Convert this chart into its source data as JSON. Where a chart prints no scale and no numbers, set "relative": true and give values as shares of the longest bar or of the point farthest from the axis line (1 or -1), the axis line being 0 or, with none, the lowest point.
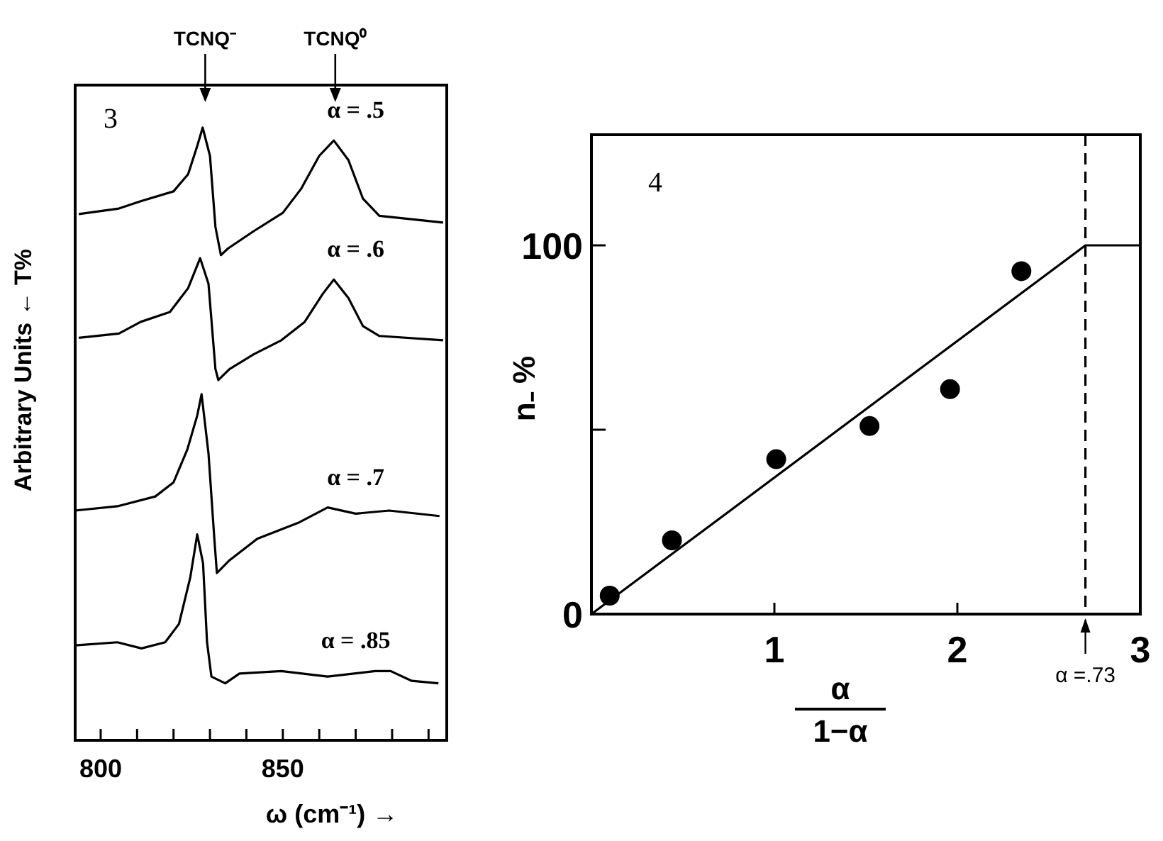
{
  "chart_data": [
    {
      "type": "line",
      "relative": true,
      "xlabel": "ω (cm⁻¹) →",
      "ylabel": "Arbitrary Units  ← T%",
      "xlim": [
        793,
        895
      ],
      "xticks": [
        800,
        {
          "value": 810,
          "label": null
        },
        {
          "value": 820,
          "label": null
        },
        {
          "value": 830,
          "label": null
        },
        {
          "value": 840,
          "label": null
        },
        850,
        {
          "value": 860,
          "label": null
        },
        {
          "value": 870,
          "label": null
        },
        {
          "value": 880,
          "label": null
        },
        {
          "value": 890,
          "label": null
        }
      ],
      "tick_labels": "x",
      "annotations": [
        "3",
        "TCNQ⁻",
        "TCNQ⁰"
      ],
      "series": [
        {
          "name": "α = .5",
          "color": "#000000",
          "x": [
            794,
            805,
            811,
            820,
            824,
            826.5,
            828,
            830,
            831.5,
            833,
            835,
            842,
            850,
            855,
            860,
            864,
            868,
            872,
            876.5,
            883,
            894
          ],
          "values": [
            0.859,
            0.868,
            0.88,
            0.896,
            0.924,
            0.97,
            1,
            0.954,
            0.838,
            0.792,
            0.803,
            0.831,
            0.861,
            0.9,
            0.954,
            0.979,
            0.947,
            0.884,
            0.856,
            0.852,
            0.845
          ]
        },
        {
          "name": "α = .6",
          "color": "#000000",
          "x": [
            794,
            805,
            811,
            819,
            824,
            827.3,
            829.6,
            831.5,
            832.3,
            835.4,
            842,
            849.6,
            856,
            861,
            864,
            868,
            872,
            876.5,
            894
          ],
          "values": [
            0.657,
            0.664,
            0.683,
            0.699,
            0.738,
            0.787,
            0.745,
            0.606,
            0.588,
            0.606,
            0.63,
            0.653,
            0.683,
            0.729,
            0.752,
            0.722,
            0.676,
            0.66,
            0.653
          ]
        },
        {
          "name": "α = .7",
          "color": "#000000",
          "x": [
            793,
            804.6,
            815,
            820,
            823.8,
            826.5,
            827.7,
            829.6,
            831.2,
            831.9,
            835.4,
            843,
            854.6,
            862.3,
            870,
            879.2,
            893
          ],
          "values": [
            0.375,
            0.382,
            0.398,
            0.421,
            0.475,
            0.53,
            0.565,
            0.468,
            0.329,
            0.273,
            0.294,
            0.329,
            0.356,
            0.38,
            0.37,
            0.375,
            0.366
          ]
        },
        {
          "name": "α = .85",
          "color": "#000000",
          "x": [
            793,
            804.6,
            811.2,
            817.7,
            821.5,
            824.6,
            826.5,
            828.1,
            829.2,
            830.4,
            834.2,
            838.1,
            849.6,
            862.3,
            875.4,
            879.6,
            885.4,
            892.7
          ],
          "values": [
            0.155,
            0.16,
            0.15,
            0.16,
            0.19,
            0.266,
            0.336,
            0.289,
            0.16,
            0.104,
            0.093,
            0.109,
            0.113,
            0.104,
            0.113,
            0.113,
            0.097,
            0.093
          ]
        }
      ]
    },
    {
      "type": "scatter",
      "xlabel": "α\n1−α",
      "ylabel": "n₋ %",
      "xlim": [
        0,
        3
      ],
      "ylim": [
        0,
        130
      ],
      "xticks": [
        {
          "value": 0,
          "label": null
        },
        1,
        2,
        3
      ],
      "yticks": [
        0,
        {
          "value": 50,
          "label": null
        },
        100
      ],
      "annotations": [
        "4"
      ],
      "ref_lines": [
        {
          "axis": "x",
          "value": 2.7,
          "label": "α =.73",
          "line_style": "dashed"
        }
      ],
      "series": [
        {
          "color": "#000000",
          "marker": "circle",
          "x": [
            0.1,
            0.44,
            1.01,
            1.52,
            1.96,
            2.35
          ],
          "values": [
            5,
            20,
            42,
            51,
            61,
            93
          ]
        },
        {
          "type": "line",
          "color": "#000000",
          "x": [
            0,
            2.7,
            3
          ],
          "values": [
            0,
            100,
            100
          ],
          "line_style": "solid",
          "marker": "none"
        }
      ]
    }
  ]
}
